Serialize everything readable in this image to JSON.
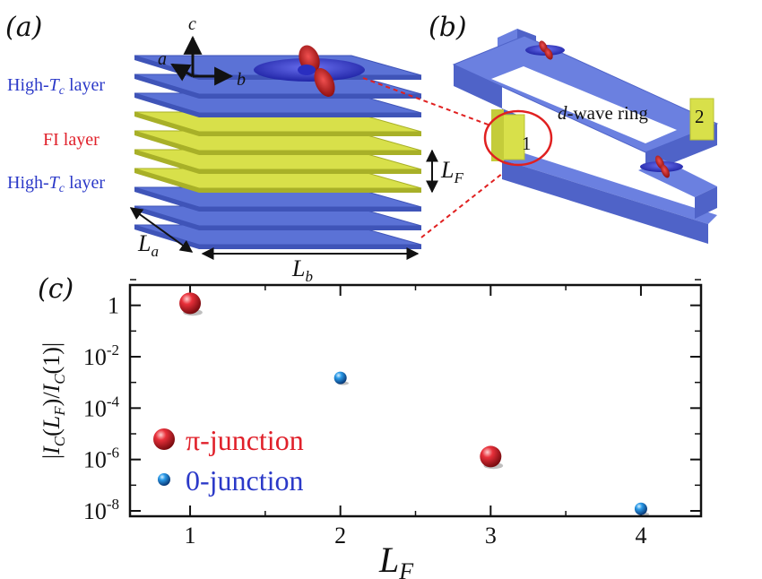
{
  "panels": {
    "a": "(a)",
    "b": "(b)",
    "c": "(c)"
  },
  "schematic_a": {
    "axis_c": "c",
    "axis_a": "a",
    "axis_b": "b",
    "layer_high_tc_top": "High-Tc layer",
    "layer_fi": "FI layer",
    "layer_high_tc_bottom": "High-Tc layer",
    "dim_lf": "LF",
    "dim_la": "La",
    "dim_lb": "Lb"
  },
  "schematic_b": {
    "ring_label": "d-wave ring",
    "junction_1": "1",
    "junction_2": "2"
  },
  "colors": {
    "superconductor_layer": "#5b72d6",
    "fi_layer": "#d8e04a",
    "pi_junction": "#d62026",
    "zero_junction": "#1e88d8",
    "label_blue": "#2b39c8",
    "label_red": "#e0202a"
  },
  "chart_data": {
    "type": "scatter",
    "xlabel": "LF",
    "ylabel": "|IC(LF)/IC(1)|",
    "yscale": "log",
    "xlim": [
      0.6,
      4.4
    ],
    "ylim": [
      1e-08,
      10
    ],
    "xticks": [
      1,
      2,
      3,
      4
    ],
    "yticks": [
      {
        "value": 1,
        "label": "1"
      },
      {
        "value": 0.01,
        "label": "10-2"
      },
      {
        "value": 0.0001,
        "label": "10-4"
      },
      {
        "value": 1e-06,
        "label": "10-6"
      },
      {
        "value": 1e-08,
        "label": "10-8"
      }
    ],
    "legend_position": "bottom-left",
    "series": [
      {
        "name": "π-junction",
        "color": "#d62026",
        "points": [
          {
            "x": 1,
            "y": 1.2
          },
          {
            "x": 3,
            "y": 1.3e-06
          }
        ]
      },
      {
        "name": "0-junction",
        "color": "#1e88d8",
        "points": [
          {
            "x": 2,
            "y": 0.0015
          },
          {
            "x": 4,
            "y": 1.2e-08
          }
        ]
      }
    ]
  }
}
